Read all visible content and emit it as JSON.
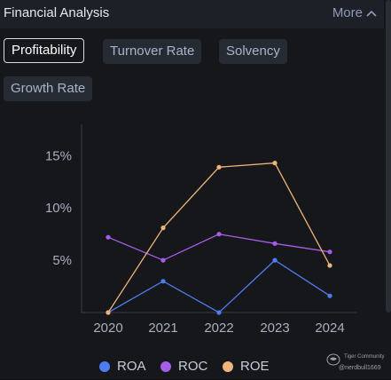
{
  "header": {
    "title": "Financial Analysis",
    "more_label": "More"
  },
  "tabs": [
    {
      "label": "Profitability",
      "active": true
    },
    {
      "label": "Turnover Rate",
      "active": false
    },
    {
      "label": "Solvency",
      "active": false
    },
    {
      "label": "Growth Rate",
      "active": false
    }
  ],
  "watermark": {
    "line1": "Tiger Community",
    "line2": "@nerdbull1669"
  },
  "colors": {
    "ROA": "#4f7cf0",
    "ROC": "#a65de8",
    "ROE": "#f0b47a"
  },
  "chart_data": {
    "type": "line",
    "x": [
      "2020",
      "2021",
      "2022",
      "2023",
      "2024"
    ],
    "series": [
      {
        "name": "ROA",
        "values": [
          0,
          3.0,
          0,
          5.0,
          1.6
        ]
      },
      {
        "name": "ROC",
        "values": [
          7.2,
          5.0,
          7.5,
          6.6,
          5.8
        ]
      },
      {
        "name": "ROE",
        "values": [
          0,
          8.1,
          13.9,
          14.3,
          4.5
        ]
      }
    ],
    "ylim": [
      0,
      18
    ],
    "yticks": [
      5,
      10,
      15
    ],
    "ytick_labels": [
      "5%",
      "10%",
      "15%"
    ],
    "legend": "bottom",
    "grid": false
  }
}
